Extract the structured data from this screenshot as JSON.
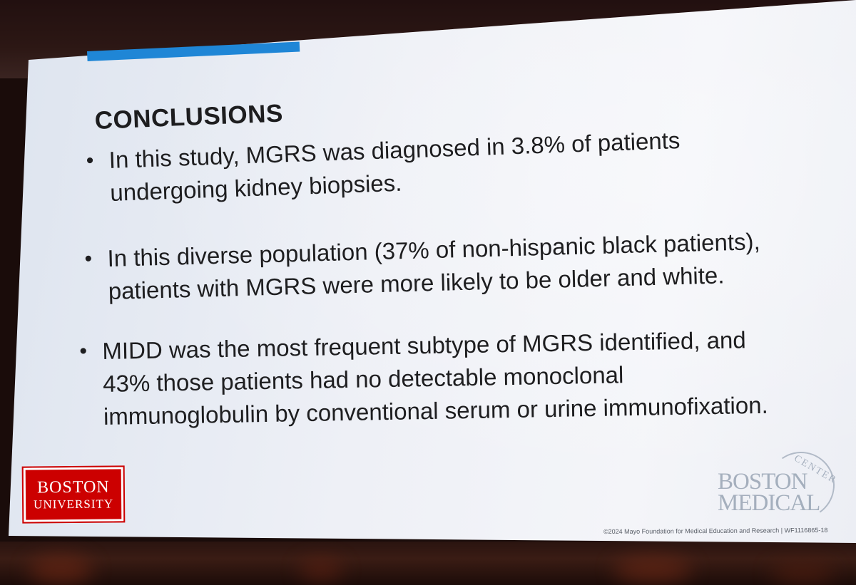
{
  "slide": {
    "title": "CONCLUSIONS",
    "bullets": [
      {
        "lines": [
          "In this study, MGRS was diagnosed in 3.8% of patients",
          "undergoing kidney biopsies."
        ]
      },
      {
        "lines": [
          "In this diverse population (37% of non-hispanic black patients),",
          "patients with MGRS were more likely to be older and white."
        ]
      },
      {
        "lines": [
          "MIDD was the most frequent subtype of MGRS identified, and",
          "43% those patients had no detectable monoclonal",
          "immunoglobulin by conventional serum or urine immunofixation."
        ]
      }
    ],
    "bullet_marker": "•",
    "left_logo": {
      "line1": "BOSTON",
      "line2": "UNIVERSITY"
    },
    "right_logo": {
      "arc_text": "CENTER",
      "line1": "BOSTON",
      "line2": "MEDICAL"
    },
    "footer": "©2024 Mayo Foundation for Medical Education and Research  |  WF1116865-18",
    "colors": {
      "accent_bar": "#1f86d6",
      "bu_red": "#cc0000",
      "text": "#1e1e20"
    }
  }
}
